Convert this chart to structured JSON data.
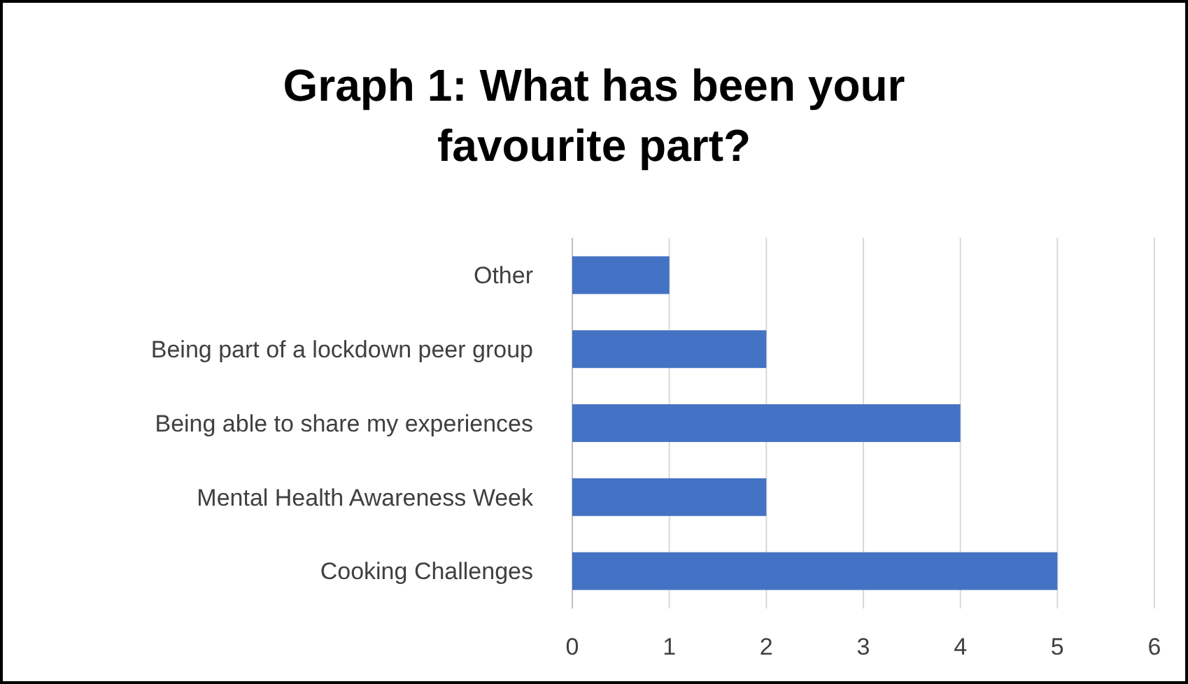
{
  "chart_data": {
    "type": "bar",
    "orientation": "horizontal",
    "title": "Graph 1: What has been your favourite part?",
    "categories": [
      "Other",
      "Being part of a lockdown peer group",
      "Being able to share my experiences",
      "Mental Health Awareness Week",
      "Cooking Challenges"
    ],
    "values": [
      1,
      2,
      4,
      2,
      5
    ],
    "color": "#4472c4",
    "xlim": [
      0,
      6
    ],
    "xticks": [
      0,
      1,
      2,
      3,
      4,
      5,
      6
    ],
    "grid": "x"
  }
}
